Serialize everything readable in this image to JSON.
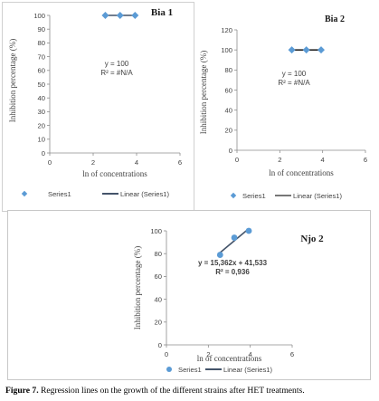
{
  "caption": {
    "label": "Figure 7.",
    "text": " Regression lines on the growth of the different strains after HET treatments."
  },
  "chart_data": [
    {
      "type": "scatter",
      "title": "Bia 1",
      "xlabel": "ln of concentrations",
      "ylabel": "Inhibition percentage (%)",
      "xlim": [
        0,
        6
      ],
      "ylim": [
        0,
        100
      ],
      "xticks": [
        0,
        2,
        4,
        6
      ],
      "yticks": [
        0,
        10,
        20,
        30,
        40,
        50,
        60,
        70,
        80,
        90,
        100
      ],
      "series": [
        {
          "name": "Series1",
          "x": [
            2.56,
            3.24,
            3.93
          ],
          "y": [
            100,
            100,
            100
          ],
          "color": "#5b9bd5",
          "marker": "diamond"
        }
      ],
      "trendline": {
        "name": "Linear (Series1)",
        "x": [
          2.56,
          3.93
        ],
        "y": [
          100,
          100
        ],
        "color": "#44546a"
      },
      "annotation": [
        "y = 100",
        "R² = #N/A"
      ],
      "legend": "bottom"
    },
    {
      "type": "scatter",
      "title": "Bia 2",
      "xlabel": "ln of concentrations",
      "ylabel": "Inhibition percentage (%)",
      "xlim": [
        0,
        6
      ],
      "ylim": [
        0,
        120
      ],
      "xticks": [
        0,
        2,
        4,
        6
      ],
      "yticks": [
        0,
        20,
        40,
        60,
        80,
        100,
        120
      ],
      "series": [
        {
          "name": "Series1",
          "x": [
            2.56,
            3.24,
            3.93
          ],
          "y": [
            100,
            100,
            100
          ],
          "color": "#5b9bd5",
          "marker": "diamond"
        }
      ],
      "trendline": {
        "name": "Linear (Series1)",
        "x": [
          2.56,
          3.93
        ],
        "y": [
          100,
          100
        ],
        "color": "#262626"
      },
      "annotation": [
        "y = 100",
        "R² = #N/A"
      ],
      "legend": "bottom"
    },
    {
      "type": "scatter",
      "title": "Njo 2",
      "xlabel": "ln of concentrations",
      "ylabel": "Inhibition percentage (%)",
      "xlim": [
        0,
        6
      ],
      "ylim": [
        0,
        100
      ],
      "xticks": [
        0,
        2,
        4,
        6
      ],
      "yticks": [
        0,
        20,
        40,
        60,
        80,
        100
      ],
      "series": [
        {
          "name": "Series1",
          "x": [
            2.56,
            3.24,
            3.93
          ],
          "y": [
            78.9,
            94.0,
            100
          ],
          "color": "#5b9bd5",
          "marker": "circle"
        }
      ],
      "trendline": {
        "name": "Linear (Series1)",
        "slope": 15.362,
        "intercept": 41.533,
        "x": [
          2.56,
          3.93
        ],
        "color": "#44546a"
      },
      "annotation": [
        "y = 15,362x + 41,533",
        "R² = 0,936"
      ],
      "legend": "bottom"
    }
  ]
}
